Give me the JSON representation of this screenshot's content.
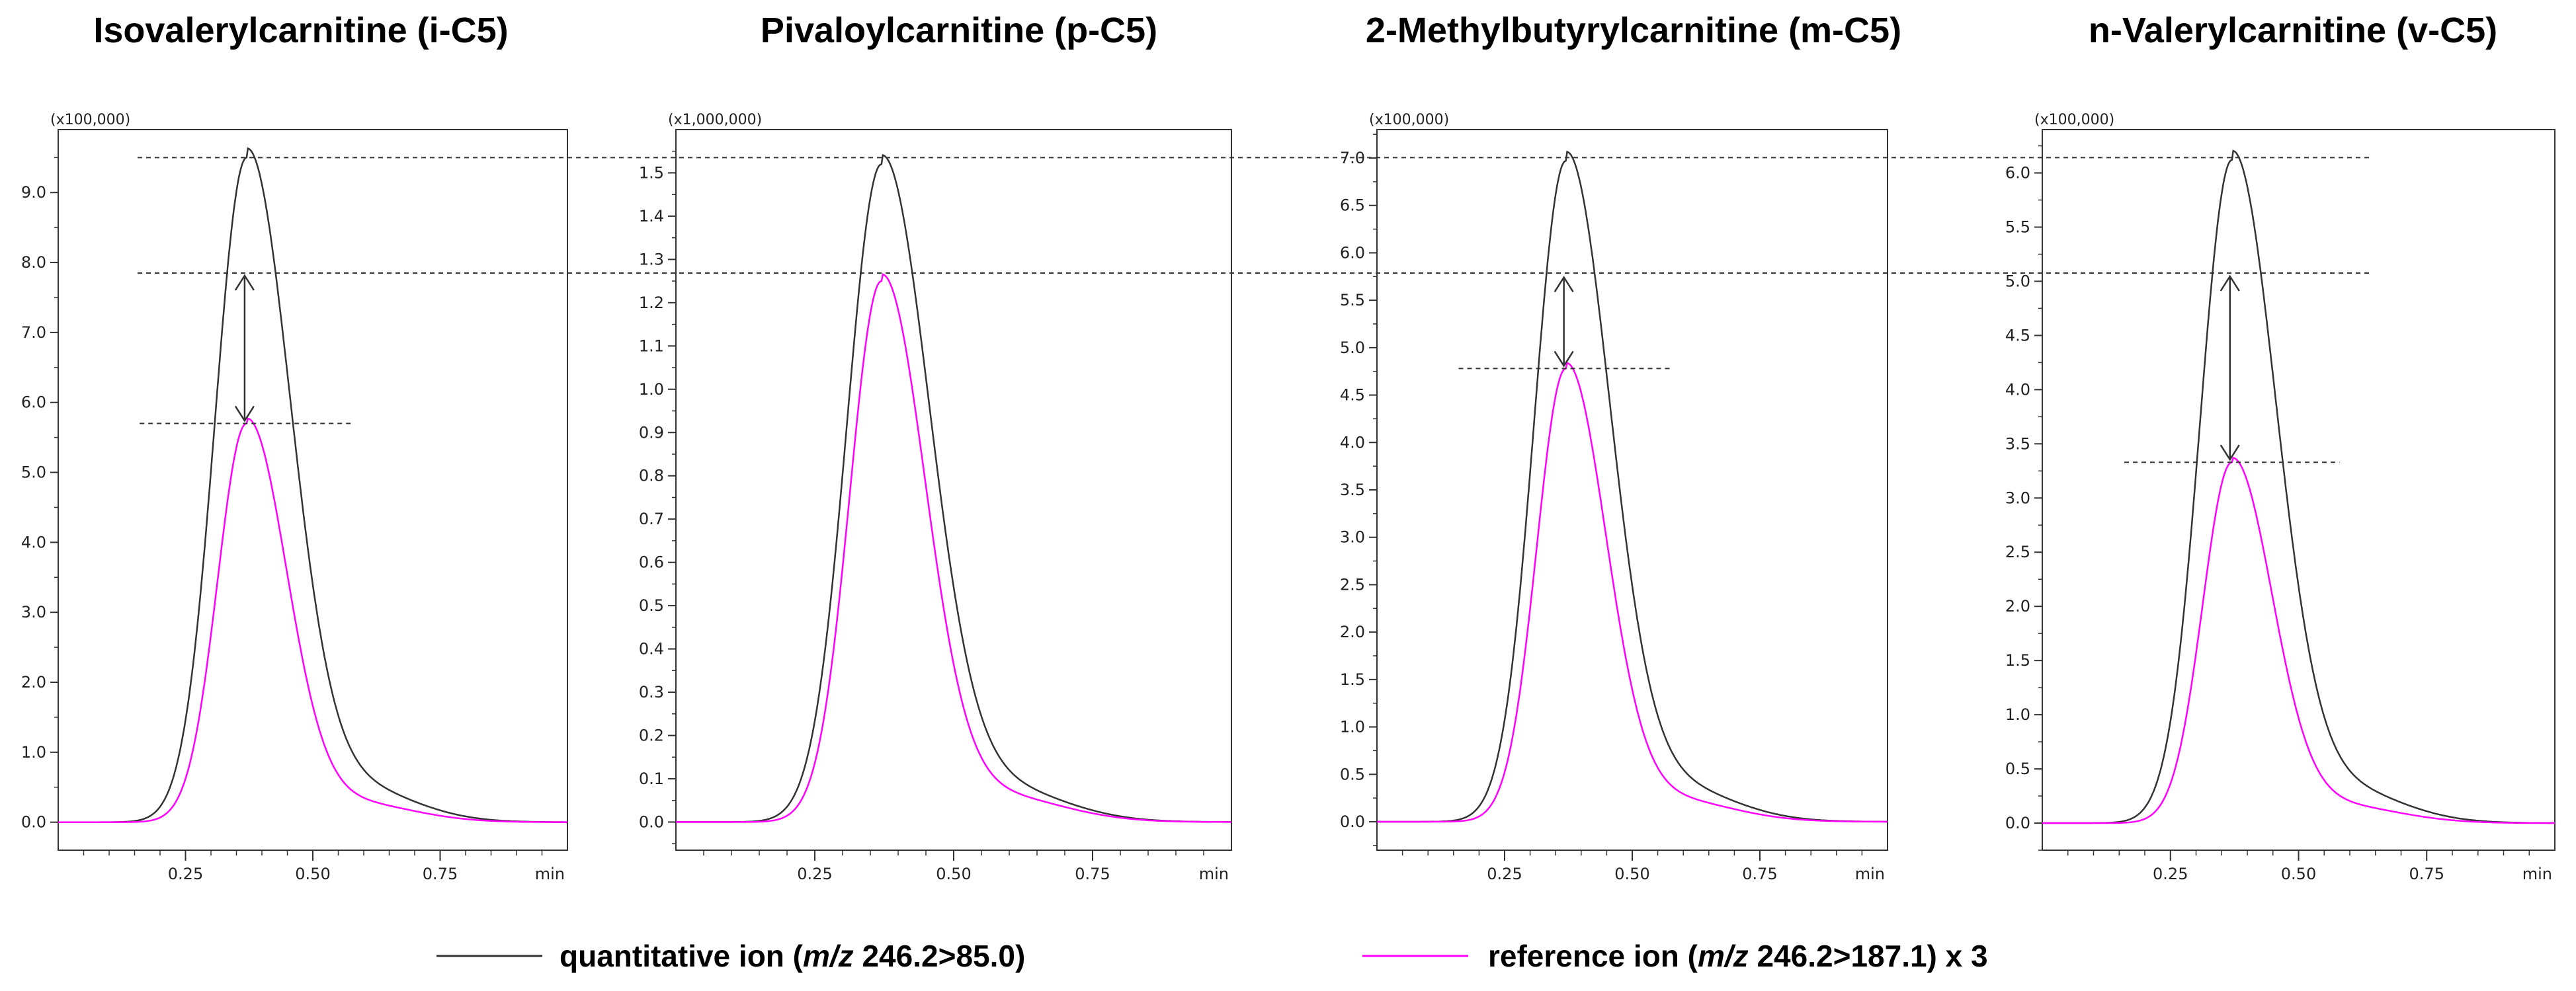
{
  "chart_data": [
    {
      "type": "line",
      "title": "Isovalerylcarnitine (i-C5)",
      "multiplier": "(x100,000)",
      "xlabel": "min",
      "xlim": [
        0,
        1.0
      ],
      "ylim": [
        -0.4,
        9.9
      ],
      "xticks": [
        0.25,
        0.5,
        0.75
      ],
      "xtick_labels": [
        "0.25",
        "0.50",
        "0.75"
      ],
      "yticks": [
        0,
        1,
        2,
        3,
        4,
        5,
        6,
        7,
        8,
        9
      ],
      "ytick_labels": [
        "0.0",
        "1.0",
        "2.0",
        "3.0",
        "4.0",
        "5.0",
        "6.0",
        "7.0",
        "8.0",
        "9.0"
      ],
      "peak_rt": 0.37,
      "series": [
        {
          "name": "quantitative ion",
          "color": "#333333",
          "peak": 9.5,
          "shape": "quantitative"
        },
        {
          "name": "reference ion x 3",
          "color": "#ff00ff",
          "peak": 5.7,
          "shape": "reference"
        }
      ],
      "annotation": {
        "arrow_from": 7.85,
        "arrow_to": 5.7
      }
    },
    {
      "type": "line",
      "title": "Pivaloylcarnitine (p-C5)",
      "multiplier": "(x1,000,000)",
      "xlabel": "min",
      "xlim": [
        0,
        1.0
      ],
      "ylim": [
        -0.065,
        1.6
      ],
      "xticks": [
        0.25,
        0.5,
        0.75
      ],
      "xtick_labels": [
        "0.25",
        "0.50",
        "0.75"
      ],
      "yticks": [
        0,
        0.1,
        0.2,
        0.3,
        0.4,
        0.5,
        0.6,
        0.7,
        0.8,
        0.9,
        1.0,
        1.1,
        1.2,
        1.3,
        1.4,
        1.5
      ],
      "ytick_labels": [
        "0.0",
        "0.1",
        "0.2",
        "0.3",
        "0.4",
        "0.5",
        "0.6",
        "0.7",
        "0.8",
        "0.9",
        "1.0",
        "1.1",
        "1.2",
        "1.3",
        "1.4",
        "1.5"
      ],
      "peak_rt": 0.37,
      "series": [
        {
          "name": "quantitative ion",
          "color": "#333333",
          "peak": 1.52,
          "shape": "quantitative"
        },
        {
          "name": "reference ion x 3",
          "color": "#ff00ff",
          "peak": 1.25,
          "shape": "reference"
        }
      ],
      "annotation": null
    },
    {
      "type": "line",
      "title": "2-Methylbutyrylcarnitine (m-C5)",
      "multiplier": "(x100,000)",
      "xlabel": "min",
      "xlim": [
        0,
        1.0
      ],
      "ylim": [
        -0.3,
        7.3
      ],
      "xticks": [
        0.25,
        0.5,
        0.75
      ],
      "xtick_labels": [
        "0.25",
        "0.50",
        "0.75"
      ],
      "yticks": [
        0,
        0.5,
        1.0,
        1.5,
        2.0,
        2.5,
        3.0,
        3.5,
        4.0,
        4.5,
        5.0,
        5.5,
        6.0,
        6.5,
        7.0
      ],
      "ytick_labels": [
        "0.0",
        "0.5",
        "1.0",
        "1.5",
        "2.0",
        "2.5",
        "3.0",
        "3.5",
        "4.0",
        "4.5",
        "5.0",
        "5.5",
        "6.0",
        "6.5",
        "7.0"
      ],
      "peak_rt": 0.37,
      "series": [
        {
          "name": "quantitative ion",
          "color": "#333333",
          "peak": 6.97,
          "shape": "quantitative"
        },
        {
          "name": "reference ion x 3",
          "color": "#ff00ff",
          "peak": 4.78,
          "shape": "reference"
        }
      ],
      "annotation": {
        "arrow_from": 5.77,
        "arrow_to": 4.78
      }
    },
    {
      "type": "line",
      "title": "n-Valerylcarnitine (v-C5)",
      "multiplier": "(x100,000)",
      "xlabel": "min",
      "xlim": [
        0,
        1.0
      ],
      "ylim": [
        -0.25,
        6.4
      ],
      "xticks": [
        0.25,
        0.5,
        0.75
      ],
      "xtick_labels": [
        "0.25",
        "0.50",
        "0.75"
      ],
      "yticks": [
        0,
        0.5,
        1.0,
        1.5,
        2.0,
        2.5,
        3.0,
        3.5,
        4.0,
        4.5,
        5.0,
        5.5,
        6.0
      ],
      "ytick_labels": [
        "0.0",
        "0.5",
        "1.0",
        "1.5",
        "2.0",
        "2.5",
        "3.0",
        "3.5",
        "4.0",
        "4.5",
        "5.0",
        "5.5",
        "6.0"
      ],
      "peak_rt": 0.37,
      "series": [
        {
          "name": "quantitative ion",
          "color": "#333333",
          "peak": 6.12,
          "shape": "quantitative"
        },
        {
          "name": "reference ion x 3",
          "color": "#ff00ff",
          "peak": 3.33,
          "shape": "reference"
        }
      ],
      "annotation": {
        "arrow_from": 5.07,
        "arrow_to": 3.33
      }
    }
  ],
  "legend": {
    "items": [
      {
        "label_prefix": "quantitative ion (",
        "label_italic": "m/z",
        "label_suffix": " 246.2>85.0)",
        "color": "#333333"
      },
      {
        "label_prefix": "reference ion (",
        "label_italic": "m/z",
        "label_suffix": " 246.2>187.1) x 3",
        "color": "#ff00ff"
      }
    ]
  }
}
